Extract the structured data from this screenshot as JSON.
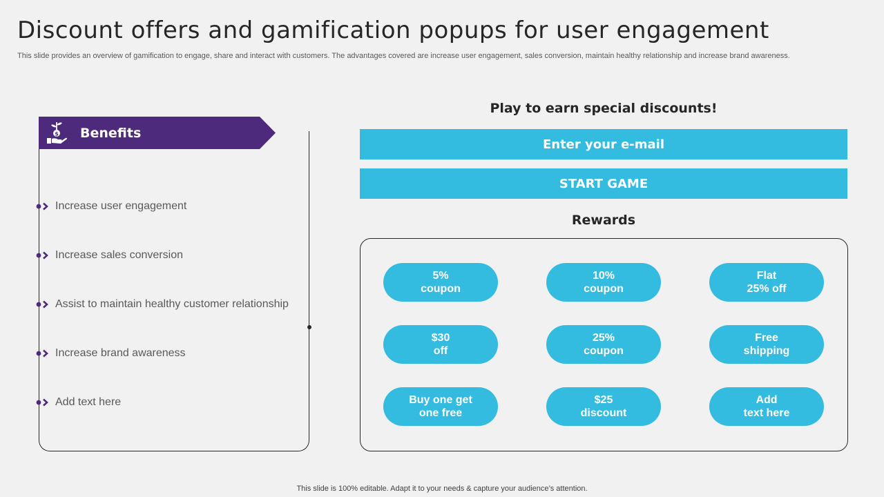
{
  "slide": {
    "title": "Discount offers and gamification popups for user engagement",
    "subtitle": "This slide provides an overview of gamification to engage, share and interact with customers. The advantages covered are increase user engagement, sales conversion, maintain healthy relationship and increase brand awareness."
  },
  "benefits": {
    "heading": "Benefits",
    "icon": "hand-plant-dollar-icon",
    "items": [
      "Increase user engagement",
      "Increase sales conversion",
      "Assist to maintain healthy customer relationship",
      "Increase brand awareness",
      "Add text here"
    ]
  },
  "game": {
    "heading": "Play to earn special discounts!",
    "email_placeholder": "Enter your e-mail",
    "start_label": "START GAME",
    "rewards_heading": "Rewards",
    "rewards": [
      {
        "line1": "5%",
        "line2": "coupon"
      },
      {
        "line1": "10%",
        "line2": "coupon"
      },
      {
        "line1": "Flat",
        "line2": "25% off"
      },
      {
        "line1": "$30",
        "line2": "off"
      },
      {
        "line1": "25%",
        "line2": "coupon"
      },
      {
        "line1": "Free",
        "line2": "shipping"
      },
      {
        "line1": "Buy one get",
        "line2": "one free"
      },
      {
        "line1": "$25",
        "line2": "discount"
      },
      {
        "line1": "Add",
        "line2": "text here"
      }
    ]
  },
  "footer": "This slide is 100% editable. Adapt it to your needs & capture your audience’s attention.",
  "colors": {
    "accent_purple": "#4e2a7c",
    "accent_cyan": "#33bbe0",
    "background": "#f1f1f1"
  }
}
